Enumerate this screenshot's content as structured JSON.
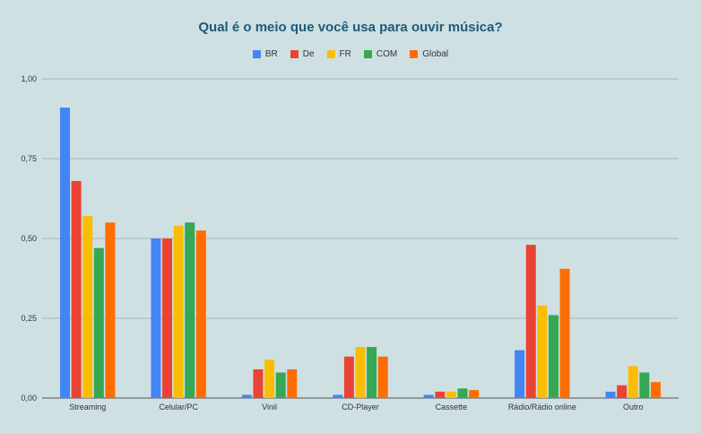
{
  "chart_data": {
    "type": "bar",
    "title": "Qual é o meio que você usa para ouvir música?",
    "categories": [
      "Streaming",
      "Celular/PC",
      "Vinil",
      "CD-Player",
      "Cassette",
      "Rádio/Rádio online",
      "Outro"
    ],
    "series": [
      {
        "name": "BR",
        "color": "#4285f4",
        "values": [
          0.91,
          0.5,
          0.01,
          0.01,
          0.01,
          0.15,
          0.02
        ]
      },
      {
        "name": "De",
        "color": "#ea4335",
        "values": [
          0.68,
          0.5,
          0.09,
          0.13,
          0.02,
          0.48,
          0.04
        ]
      },
      {
        "name": "FR",
        "color": "#fbbc04",
        "values": [
          0.57,
          0.54,
          0.12,
          0.16,
          0.02,
          0.29,
          0.1
        ]
      },
      {
        "name": "COM",
        "color": "#34a853",
        "values": [
          0.47,
          0.55,
          0.08,
          0.16,
          0.03,
          0.26,
          0.08
        ]
      },
      {
        "name": "Global",
        "color": "#ff6d01",
        "values": [
          0.55,
          0.525,
          0.09,
          0.13,
          0.025,
          0.405,
          0.05
        ]
      }
    ],
    "yticks": [
      "0,00",
      "0,25",
      "0,50",
      "0,75",
      "1,00"
    ],
    "ylim": [
      0,
      1
    ],
    "grid": true,
    "legend": "top-center"
  }
}
